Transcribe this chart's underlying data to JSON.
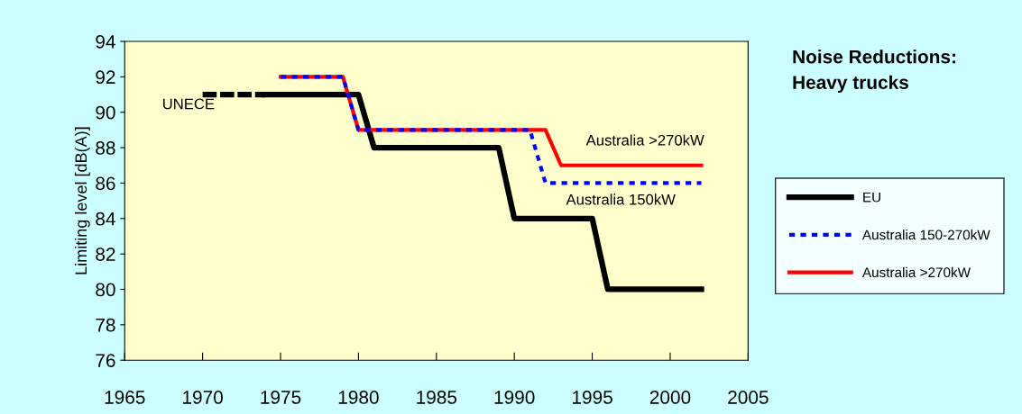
{
  "chart_data": {
    "type": "line",
    "title": "Noise Reductions: Heavy trucks",
    "ylabel": "Limiting level [dB(A)]",
    "xlim": [
      1965,
      2005
    ],
    "xticks": [
      1965,
      1970,
      1975,
      1980,
      1985,
      1990,
      1995,
      2000,
      2005
    ],
    "ylim": [
      76,
      94
    ],
    "yticks": [
      76,
      78,
      80,
      82,
      84,
      86,
      88,
      90,
      92,
      94
    ],
    "grid": false,
    "legend": "right",
    "marker": "none",
    "series": [
      {
        "color": "#000000",
        "line_style": "dashed",
        "x": [
          1970,
          1974
        ],
        "values": [
          91,
          91
        ]
      },
      {
        "name": "EU",
        "color": "#000000",
        "line_style": "solid",
        "x": [
          1974,
          1980,
          1981,
          1989,
          1990,
          1995,
          1996,
          2002
        ],
        "values": [
          91,
          91,
          88,
          88,
          84,
          84,
          80,
          80
        ]
      },
      {
        "name": "Australia 150-270kW",
        "color": "#0000ff",
        "line_style": "dotted",
        "x": [
          1975,
          1979,
          1980,
          1991,
          1992,
          2002
        ],
        "values": [
          92,
          92,
          89,
          89,
          86,
          86
        ]
      },
      {
        "name": "Australia >270kW",
        "color": "#ff0000",
        "line_style": "solid",
        "x": [
          1975,
          1979,
          1980,
          1992,
          1993,
          2002
        ],
        "values": [
          92,
          92,
          89,
          89,
          87,
          87
        ]
      }
    ],
    "annotations": [
      "UNECE",
      "Australia >270kW",
      "Australia 150kW"
    ]
  }
}
